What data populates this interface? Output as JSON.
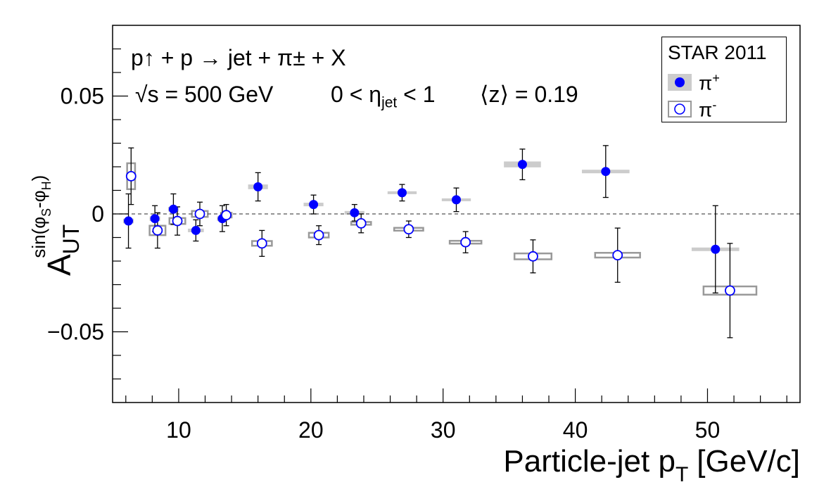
{
  "chart_data": {
    "type": "scatter",
    "xlabel": "Particle-jet p",
    "xlabel_sub": "T",
    "xlabel_unit": "[GeV/c]",
    "ylabel": "A",
    "ylabel_sub": "UT",
    "ylabel_sup": "sin(φ",
    "ylabel_sup_s": "S",
    "ylabel_sup_mid": "-φ",
    "ylabel_sup_h": "H",
    "ylabel_sup_end": ")",
    "xlim": [
      5,
      57
    ],
    "ylim": [
      -0.08,
      0.08
    ],
    "x_ticks": [
      10,
      20,
      30,
      40,
      50
    ],
    "x_tick_labels": [
      "10",
      "20",
      "30",
      "40",
      "50"
    ],
    "y_ticks": [
      -0.05,
      0,
      0.05
    ],
    "y_tick_labels": [
      "−0.05",
      "0",
      "0.05"
    ],
    "zero_line": "dashed",
    "grid": false,
    "legend_position": "top-right",
    "annotations": {
      "reaction": "p↑ + p → jet + π± + X",
      "sqrt_s": "√s = 500 GeV",
      "eta": "0 < η",
      "eta_sub": "jet",
      "eta_end": " < 1",
      "z": "⟨z⟩ = 0.19"
    },
    "legend": {
      "title": "STAR 2011",
      "items": [
        "π+",
        "π-"
      ]
    },
    "series": [
      {
        "name": "π+",
        "marker": "filled-circle",
        "color": "#0000ff",
        "syst_color": "#cccccc",
        "x": [
          6.2,
          8.2,
          9.6,
          11.3,
          13.3,
          16.0,
          20.2,
          23.3,
          26.9,
          31.0,
          36.0,
          42.3,
          50.6
        ],
        "y": [
          -0.003,
          -0.002,
          0.002,
          -0.007,
          -0.002,
          0.0115,
          0.004,
          0.0005,
          0.009,
          0.006,
          0.021,
          0.018,
          -0.015
        ],
        "stat_err": [
          0.0115,
          0.0055,
          0.0065,
          0.0045,
          0.0055,
          0.006,
          0.004,
          0.0035,
          0.0035,
          0.005,
          0.0065,
          0.011,
          0.0185
        ],
        "syst_width": [
          0.8,
          0.8,
          0.8,
          1.2,
          0.8,
          1.5,
          1.5,
          1.5,
          2.2,
          2.2,
          2.8,
          3.6,
          3.6
        ],
        "syst_height": [
          0.002,
          0.002,
          0.002,
          0.0015,
          0.002,
          0.002,
          0.0015,
          0.0015,
          0.0012,
          0.0012,
          0.0025,
          0.0015,
          0.0015
        ]
      },
      {
        "name": "π-",
        "marker": "open-circle",
        "color": "#0000ff",
        "syst_color": "#999999",
        "x": [
          6.4,
          8.4,
          9.9,
          11.6,
          13.6,
          16.3,
          20.6,
          23.8,
          27.4,
          31.7,
          36.8,
          43.2,
          51.7
        ],
        "y": [
          0.016,
          -0.007,
          -0.003,
          0.0,
          -0.0005,
          -0.0125,
          -0.009,
          -0.004,
          -0.0065,
          -0.012,
          -0.018,
          -0.0175,
          -0.0325
        ],
        "stat_err": [
          0.012,
          0.0075,
          0.006,
          0.005,
          0.0045,
          0.0055,
          0.004,
          0.004,
          0.0035,
          0.0045,
          0.007,
          0.0115,
          0.02
        ],
        "syst_width": [
          0.6,
          1.2,
          1.2,
          1.2,
          0.8,
          1.5,
          1.5,
          1.5,
          2.2,
          2.4,
          2.8,
          3.4,
          4.0
        ],
        "syst_height": [
          0.011,
          0.004,
          0.0025,
          0.0025,
          0.002,
          0.002,
          0.002,
          0.0012,
          0.0012,
          0.0012,
          0.0025,
          0.002,
          0.0035
        ]
      }
    ]
  }
}
